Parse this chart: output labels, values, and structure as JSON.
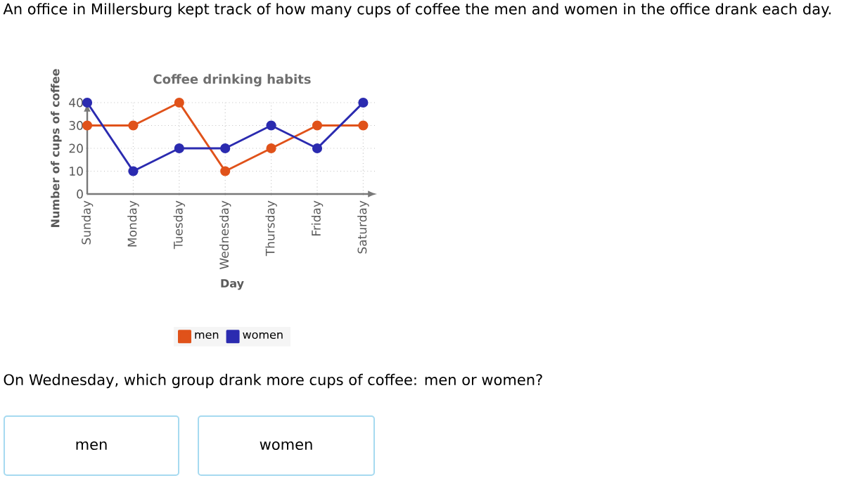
{
  "chart_data": {
    "type": "line",
    "title": "Coffee drinking habits",
    "xlabel": "Day",
    "ylabel": "Number of cups of coffee",
    "categories": [
      "Sunday",
      "Monday",
      "Tuesday",
      "Wednesday",
      "Thursday",
      "Friday",
      "Saturday"
    ],
    "series": [
      {
        "name": "men",
        "color": "#e0521a",
        "values": [
          30,
          30,
          40,
          10,
          20,
          30,
          30
        ]
      },
      {
        "name": "women",
        "color": "#2b2bb0",
        "values": [
          40,
          10,
          20,
          20,
          30,
          20,
          40
        ]
      }
    ],
    "ylim": [
      0,
      40
    ],
    "yticks": [
      0,
      10,
      20,
      30,
      40
    ],
    "grid": true,
    "legend": "bottom",
    "marker": "circle",
    "line_style": "solid",
    "annotations": [
      "An office in Millersburg kept track of how many cups of coffee the men and women in the office drank each day.",
      "On Wednesday, which group drank more cups of coffee: men or women?",
      "men",
      "women"
    ]
  }
}
